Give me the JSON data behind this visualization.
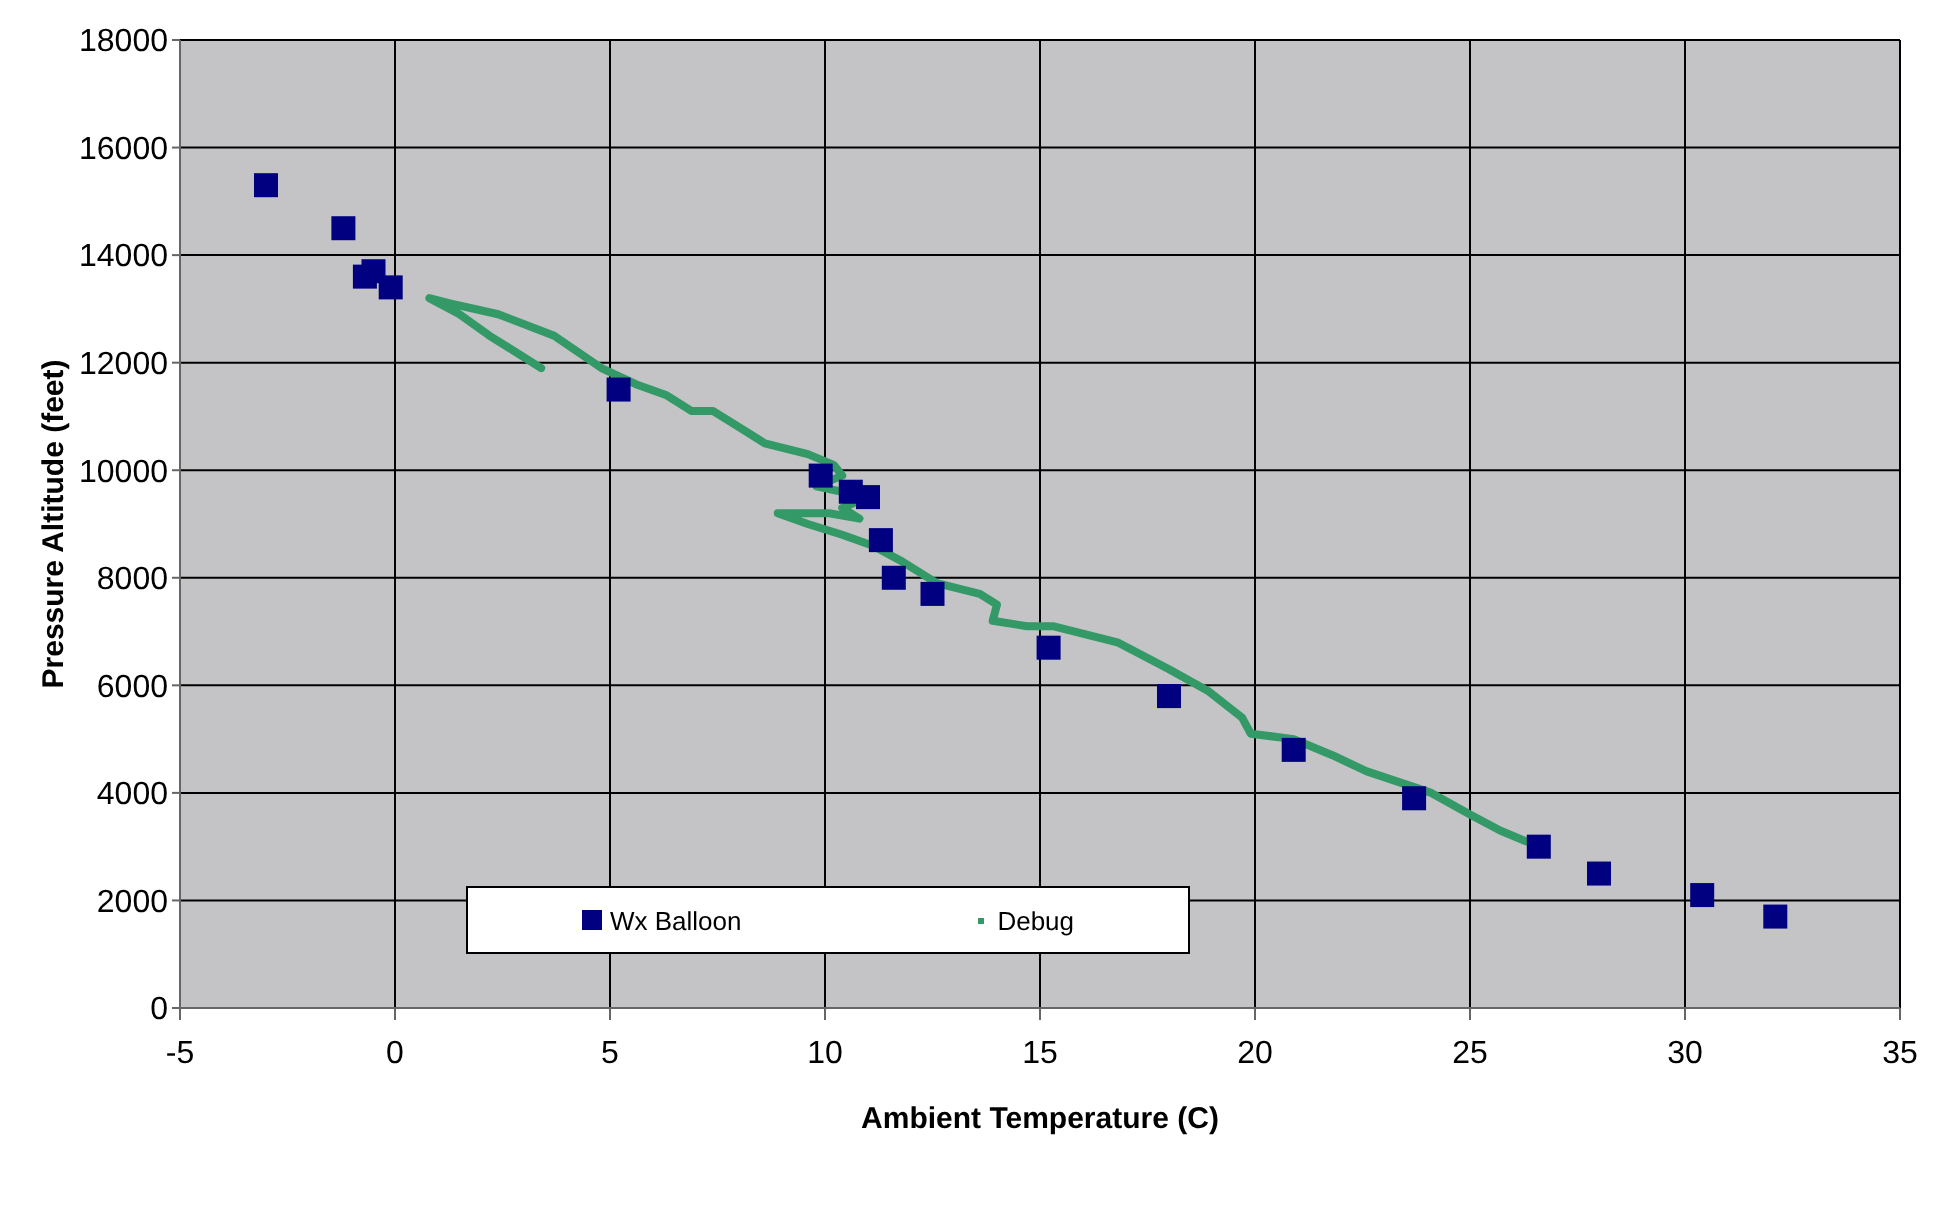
{
  "chart_data": {
    "type": "scatter",
    "xlabel": "Ambient Temperature (C)",
    "ylabel": "Pressure Altitude (feet)",
    "xlim": [
      -5,
      35
    ],
    "xticks": [
      -5,
      0,
      5,
      10,
      15,
      20,
      25,
      30,
      35
    ],
    "ylim": [
      0,
      18000
    ],
    "yticks": [
      0,
      2000,
      4000,
      6000,
      8000,
      10000,
      12000,
      14000,
      16000,
      18000
    ],
    "grid": true,
    "legend": "bottom",
    "marker": "square",
    "series": [
      {
        "name": "Wx Balloon",
        "color": "#000080",
        "x": [
          -3.0,
          -1.2,
          -0.7,
          -0.5,
          -0.1,
          5.2,
          9.9,
          10.6,
          11.0,
          11.3,
          11.6,
          12.5,
          15.2,
          18.0,
          20.9,
          23.7,
          26.6,
          28.0,
          30.4,
          32.1
        ],
        "values": [
          15300,
          14500,
          13600,
          13700,
          13400,
          11500,
          9900,
          9600,
          9500,
          8700,
          8000,
          7700,
          6700,
          5800,
          4800,
          3900,
          3000,
          2500,
          2100,
          1700
        ]
      },
      {
        "name": "Debug",
        "type": "line",
        "marker": "none",
        "color": "#339966",
        "x": [
          3.4,
          2.2,
          1.5,
          0.8,
          1.3,
          2.4,
          3.7,
          4.8,
          5.6,
          6.3,
          6.9,
          7.4,
          8.0,
          8.6,
          9.6,
          10.2,
          10.4,
          9.8,
          10.4,
          11.0,
          10.4,
          10.8,
          10.1,
          8.9,
          9.6,
          10.4,
          11.1,
          11.8,
          12.6,
          13.6,
          14.0,
          13.9,
          14.7,
          15.3,
          16.8,
          18.0,
          18.9,
          19.7,
          19.9,
          20.9,
          21.8,
          22.6,
          24.1,
          25.0,
          25.7,
          26.3
        ],
        "values": [
          11900,
          12500,
          12900,
          13200,
          13100,
          12900,
          12500,
          11900,
          11600,
          11400,
          11100,
          11100,
          10800,
          10500,
          10300,
          10100,
          9900,
          9700,
          9600,
          9500,
          9300,
          9100,
          9200,
          9200,
          9000,
          8800,
          8600,
          8300,
          7900,
          7700,
          7500,
          7200,
          7100,
          7100,
          6800,
          6300,
          5900,
          5400,
          5100,
          5000,
          4700,
          4400,
          4000,
          3600,
          3300,
          3100
        ]
      }
    ]
  }
}
